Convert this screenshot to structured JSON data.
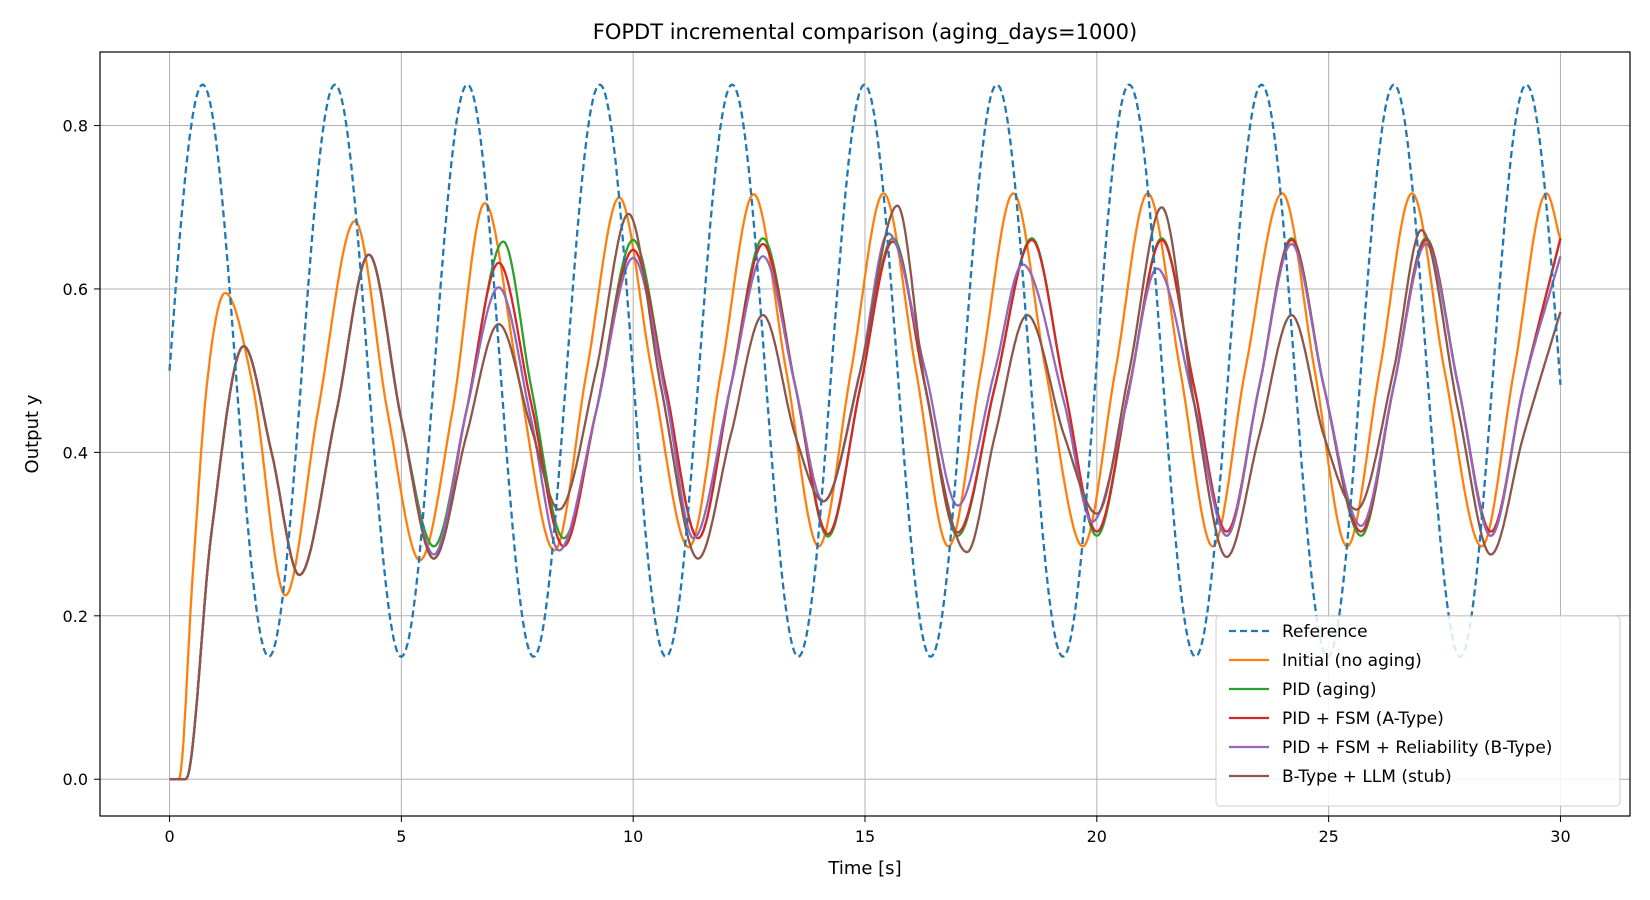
{
  "chart_data": {
    "type": "line",
    "title": "FOPDT incremental comparison (aging_days=1000)",
    "xlabel": "Time [s]",
    "ylabel": "Output y",
    "xlim": [
      -1.5,
      31.5
    ],
    "ylim": [
      -0.045,
      0.89
    ],
    "xticks": [
      0,
      5,
      10,
      15,
      20,
      25,
      30
    ],
    "yticks": [
      0.0,
      0.2,
      0.4,
      0.6,
      0.8
    ],
    "xtick_labels": [
      "0",
      "5",
      "10",
      "15",
      "20",
      "25",
      "30"
    ],
    "ytick_labels": [
      "0.0",
      "0.2",
      "0.4",
      "0.6",
      "0.8"
    ],
    "grid": true,
    "legend_position": "lower-right",
    "reference": {
      "mean": 0.5,
      "amplitude": 0.35,
      "period_s": 2.855,
      "t_start": 0,
      "t_end": 30
    },
    "series": [
      {
        "name": "Reference",
        "color": "#1f77b4",
        "style": "dashed",
        "x": [
          0,
          0.71,
          2.14,
          3.57,
          5.0,
          6.42,
          7.85,
          9.28,
          10.71,
          12.14,
          13.56,
          14.99,
          16.42,
          17.85,
          19.27,
          20.7,
          22.13,
          23.56,
          24.98,
          26.41,
          27.84,
          29.27,
          30.0
        ],
        "values": [
          0.5,
          0.85,
          0.15,
          0.85,
          0.15,
          0.85,
          0.15,
          0.85,
          0.15,
          0.85,
          0.15,
          0.85,
          0.15,
          0.85,
          0.15,
          0.85,
          0.15,
          0.85,
          0.15,
          0.85,
          0.15,
          0.85,
          0.5
        ]
      },
      {
        "name": "Initial (no aging)",
        "color": "#ff7f0e",
        "style": "solid",
        "x": [
          0,
          0.2,
          0.5,
          0.8,
          1.2,
          1.8,
          2.5,
          3.2,
          4.0,
          4.7,
          5.4,
          6.1,
          6.8,
          7.5,
          8.3,
          9.0,
          9.7,
          10.4,
          11.2,
          11.9,
          12.6,
          13.3,
          14.0,
          14.7,
          15.4,
          16.1,
          16.8,
          17.5,
          18.2,
          18.9,
          19.7,
          20.4,
          21.1,
          21.8,
          22.5,
          23.2,
          24.0,
          24.7,
          25.4,
          26.1,
          26.8,
          27.5,
          28.3,
          29.0,
          29.7,
          30.0
        ],
        "values": [
          0.0,
          0.0,
          0.25,
          0.48,
          0.595,
          0.48,
          0.225,
          0.45,
          0.683,
          0.45,
          0.268,
          0.45,
          0.705,
          0.5,
          0.28,
          0.5,
          0.712,
          0.5,
          0.284,
          0.5,
          0.716,
          0.5,
          0.285,
          0.5,
          0.717,
          0.5,
          0.285,
          0.5,
          0.717,
          0.5,
          0.285,
          0.5,
          0.717,
          0.5,
          0.285,
          0.5,
          0.717,
          0.5,
          0.285,
          0.5,
          0.717,
          0.5,
          0.285,
          0.5,
          0.717,
          0.66
        ]
      },
      {
        "name": "PID (aging)",
        "color": "#2ca02c",
        "style": "solid",
        "x": [
          0,
          0.35,
          0.9,
          1.6,
          2.2,
          2.8,
          3.6,
          4.3,
          5.0,
          5.7,
          6.4,
          7.2,
          7.8,
          8.5,
          9.2,
          10.0,
          10.7,
          11.4,
          12.1,
          12.8,
          13.5,
          14.2,
          14.9,
          15.6,
          16.3,
          17.0,
          17.8,
          18.6,
          19.3,
          20.0,
          20.7,
          21.4,
          22.1,
          22.8,
          23.5,
          24.2,
          24.9,
          25.7,
          26.4,
          27.1,
          27.8,
          28.5,
          29.2,
          30.0
        ],
        "values": [
          0.0,
          0.0,
          0.3,
          0.53,
          0.4,
          0.25,
          0.45,
          0.642,
          0.44,
          0.285,
          0.45,
          0.658,
          0.48,
          0.295,
          0.45,
          0.66,
          0.48,
          0.295,
          0.48,
          0.662,
          0.48,
          0.297,
          0.48,
          0.662,
          0.48,
          0.298,
          0.48,
          0.662,
          0.48,
          0.298,
          0.48,
          0.662,
          0.48,
          0.298,
          0.48,
          0.662,
          0.48,
          0.298,
          0.48,
          0.662,
          0.48,
          0.298,
          0.48,
          0.662
        ]
      },
      {
        "name": "PID + FSM (A-Type)",
        "color": "#d62728",
        "style": "solid",
        "x": [
          0,
          0.35,
          0.9,
          1.6,
          2.2,
          2.8,
          3.6,
          4.3,
          5.0,
          5.7,
          6.4,
          7.1,
          7.8,
          8.5,
          9.2,
          10.0,
          10.7,
          11.4,
          12.1,
          12.8,
          13.5,
          14.2,
          14.9,
          15.6,
          16.3,
          17.0,
          17.8,
          18.6,
          19.3,
          20.0,
          20.7,
          21.4,
          22.1,
          22.8,
          23.5,
          24.2,
          24.9,
          25.7,
          26.4,
          27.1,
          27.8,
          28.5,
          29.2,
          30.0
        ],
        "values": [
          0.0,
          0.0,
          0.3,
          0.53,
          0.4,
          0.25,
          0.45,
          0.642,
          0.44,
          0.27,
          0.45,
          0.632,
          0.46,
          0.285,
          0.45,
          0.648,
          0.48,
          0.295,
          0.48,
          0.655,
          0.48,
          0.3,
          0.48,
          0.658,
          0.48,
          0.302,
          0.48,
          0.66,
          0.48,
          0.303,
          0.48,
          0.66,
          0.48,
          0.303,
          0.48,
          0.66,
          0.48,
          0.303,
          0.48,
          0.66,
          0.48,
          0.303,
          0.48,
          0.662
        ]
      },
      {
        "name": "PID + FSM + Reliability (B-Type)",
        "color": "#9467bd",
        "style": "solid",
        "x": [
          0,
          0.35,
          0.9,
          1.6,
          2.2,
          2.8,
          3.6,
          4.3,
          5.0,
          5.7,
          6.4,
          7.1,
          7.8,
          8.4,
          9.2,
          10.0,
          10.7,
          11.3,
          12.1,
          12.8,
          13.5,
          14.1,
          14.9,
          15.5,
          16.3,
          17.0,
          17.8,
          18.4,
          19.3,
          19.9,
          20.6,
          21.3,
          22.1,
          22.8,
          23.5,
          24.2,
          24.9,
          25.7,
          26.4,
          27.1,
          27.8,
          28.5,
          29.2,
          30.0
        ],
        "values": [
          0.0,
          0.0,
          0.3,
          0.53,
          0.4,
          0.25,
          0.45,
          0.642,
          0.44,
          0.275,
          0.45,
          0.602,
          0.44,
          0.28,
          0.45,
          0.638,
          0.47,
          0.295,
          0.48,
          0.64,
          0.48,
          0.34,
          0.5,
          0.668,
          0.5,
          0.335,
          0.5,
          0.63,
          0.46,
          0.315,
          0.45,
          0.625,
          0.46,
          0.298,
          0.48,
          0.655,
          0.48,
          0.31,
          0.48,
          0.655,
          0.48,
          0.298,
          0.48,
          0.64
        ]
      },
      {
        "name": "B-Type + LLM (stub)",
        "color": "#8c564b",
        "style": "solid",
        "x": [
          0,
          0.35,
          0.9,
          1.6,
          2.2,
          2.8,
          3.6,
          4.3,
          5.0,
          5.7,
          6.4,
          7.1,
          7.8,
          8.4,
          9.2,
          9.9,
          10.6,
          11.4,
          12.1,
          12.8,
          13.5,
          14.1,
          14.9,
          15.7,
          16.3,
          17.2,
          17.8,
          18.5,
          19.3,
          20.0,
          20.7,
          21.4,
          22.1,
          22.8,
          23.5,
          24.2,
          24.9,
          25.6,
          26.4,
          27.0,
          27.8,
          28.5,
          29.2,
          30.0
        ],
        "values": [
          0.0,
          0.0,
          0.3,
          0.53,
          0.4,
          0.25,
          0.45,
          0.642,
          0.44,
          0.27,
          0.42,
          0.557,
          0.43,
          0.33,
          0.5,
          0.692,
          0.48,
          0.27,
          0.42,
          0.568,
          0.42,
          0.34,
          0.5,
          0.702,
          0.48,
          0.278,
          0.42,
          0.568,
          0.42,
          0.325,
          0.5,
          0.7,
          0.46,
          0.272,
          0.42,
          0.568,
          0.42,
          0.33,
          0.5,
          0.672,
          0.45,
          0.275,
          0.42,
          0.572
        ]
      }
    ]
  }
}
